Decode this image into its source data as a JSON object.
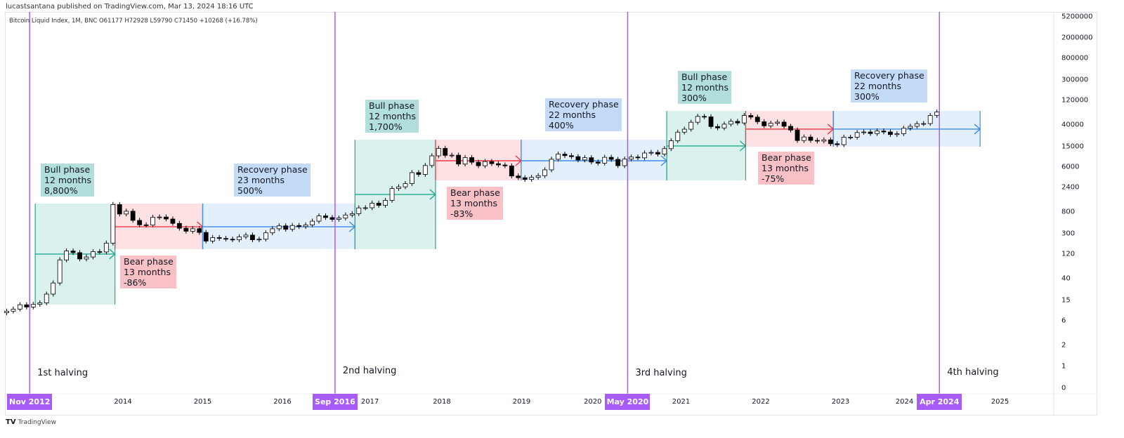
{
  "header": {
    "published": "lucastsantana published on TradingView.com, Mar 13, 2024 18:16 UTC",
    "legend": "Bitcoin Liquid Index, 1M, BNC  O61177  H72928  L59790  C71450  +10268 (+16.78%)"
  },
  "footer": {
    "brand": "TradingView"
  },
  "colors": {
    "bull": "#22ab94",
    "bear": "#f23645",
    "recovery": "#3d8be8",
    "halving": "#a75cf7"
  },
  "chart_data": {
    "type": "candlestick",
    "scale": "log",
    "y_ticks": [
      "5200000",
      "2000000",
      "800000",
      "300000",
      "120000",
      "40000",
      "15000",
      "6000",
      "2400",
      "800",
      "300",
      "120",
      "40",
      "15",
      "6",
      "2",
      "1",
      "0"
    ],
    "x_ticks": [
      "2014",
      "2015",
      "2016",
      "2017",
      "2018",
      "2019",
      "2020",
      "2021",
      "2022",
      "2023",
      "2024",
      "2025"
    ],
    "start_month": "2012-07",
    "closes": [
      9.3,
      10.2,
      12.4,
      11.2,
      12.6,
      13.5,
      20,
      33,
      93,
      139,
      129,
      97,
      106,
      135,
      133,
      198,
      1120,
      732,
      830,
      550,
      450,
      445,
      630,
      640,
      585,
      480,
      386,
      338,
      378,
      320,
      217,
      254,
      244,
      236,
      230,
      263,
      284,
      230,
      236,
      314,
      377,
      430,
      368,
      437,
      416,
      448,
      531,
      673,
      624,
      575,
      609,
      700,
      742,
      963,
      970,
      1190,
      1080,
      1350,
      2300,
      2480,
      2870,
      4700,
      4340,
      6470,
      10000,
      14000,
      10200,
      10300,
      6900,
      9240,
      7500,
      6400,
      7730,
      7030,
      6630,
      6370,
      4040,
      3740,
      3460,
      3800,
      4100,
      5330,
      8570,
      10800,
      10080,
      9630,
      8300,
      9200,
      7570,
      7190,
      9350,
      8540,
      6420,
      8630,
      9460,
      9140,
      11350,
      11660,
      10780,
      13800,
      19700,
      29000,
      33100,
      45200,
      58800,
      57700,
      37300,
      35000,
      41500,
      47100,
      43800,
      61300,
      57000,
      46300,
      38500,
      43200,
      45500,
      37700,
      31800,
      19900,
      23300,
      20000,
      19400,
      20500,
      17200,
      16500,
      23100,
      23100,
      28500,
      29200,
      27200,
      30500,
      29200,
      26000,
      27000,
      34500,
      37700,
      42300,
      42600,
      61200,
      71450
    ],
    "halvings": [
      {
        "date": "Nov 2012",
        "t": 2012.83,
        "label": "1st halving"
      },
      {
        "date": "Sep 2016",
        "t": 2016.66,
        "label": "2nd halving"
      },
      {
        "date": "May 2020",
        "t": 2020.33,
        "label": "3rd halving"
      },
      {
        "date": "Apr 2024",
        "t": 2024.24,
        "label": "4th halving"
      }
    ],
    "phases": [
      {
        "kind": "bull",
        "t0": 2012.9,
        "t1": 2013.9,
        "lo": 12.5,
        "hi": 1170,
        "mid": 121,
        "lines": [
          "Bull phase",
          "12 months",
          "8,800%"
        ]
      },
      {
        "kind": "bear",
        "t0": 2013.9,
        "t1": 2015.0,
        "lo": 151,
        "hi": 1170,
        "mid": 413,
        "lines": [
          "Bear phase",
          "13 months",
          "-86%"
        ]
      },
      {
        "kind": "recovery",
        "t0": 2015.0,
        "t1": 2016.91,
        "lo": 151,
        "hi": 1170,
        "mid": 413,
        "lines": [
          "Recovery phase",
          "23 months",
          "500%"
        ]
      },
      {
        "kind": "bull",
        "t0": 2016.91,
        "t1": 2017.92,
        "lo": 151,
        "hi": 20600,
        "mid": 1760,
        "lines": [
          "Bull phase",
          "12 months",
          "1,700%"
        ]
      },
      {
        "kind": "bear",
        "t0": 2017.92,
        "t1": 2018.995,
        "lo": 3320,
        "hi": 20600,
        "mid": 8020,
        "lines": [
          "Bear phase",
          "13 months",
          "-83%"
        ]
      },
      {
        "kind": "recovery",
        "t0": 2018.995,
        "t1": 2020.82,
        "lo": 3320,
        "hi": 20600,
        "mid": 8020,
        "lines": [
          "Recovery phase",
          "22 months",
          "400%"
        ]
      },
      {
        "kind": "bull",
        "t0": 2020.82,
        "t1": 2021.81,
        "lo": 3320,
        "hi": 75300,
        "mid": 15600,
        "lines": [
          "Bull phase",
          "12 months",
          "300%"
        ]
      },
      {
        "kind": "bear",
        "t0": 2021.81,
        "t1": 2022.91,
        "lo": 15100,
        "hi": 75300,
        "mid": 33200,
        "lines": [
          "Bear phase",
          "13 months",
          "-75%"
        ]
      },
      {
        "kind": "recovery",
        "t0": 2022.91,
        "t1": 2024.75,
        "lo": 15100,
        "hi": 75300,
        "mid": 33200,
        "lines": [
          "Recovery phase",
          "22 months",
          "300%"
        ]
      }
    ]
  }
}
